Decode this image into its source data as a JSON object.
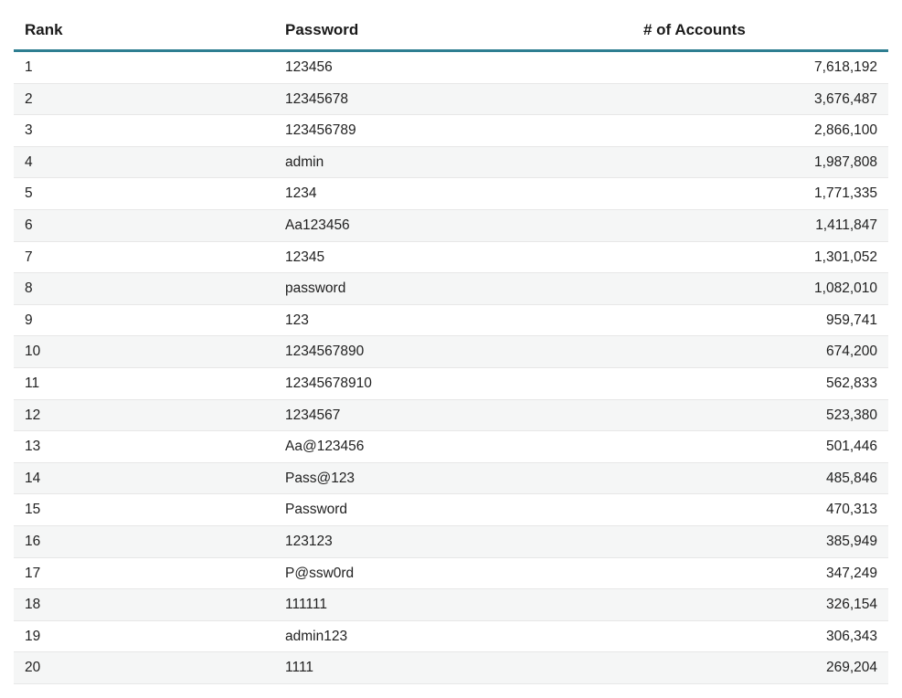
{
  "table": {
    "columns": [
      {
        "key": "rank",
        "label": "Rank",
        "align": "left"
      },
      {
        "key": "password",
        "label": "Password",
        "align": "left"
      },
      {
        "key": "accounts",
        "label": "# of Accounts",
        "align": "right"
      }
    ],
    "rows": [
      {
        "rank": "1",
        "password": "123456",
        "accounts": "7,618,192"
      },
      {
        "rank": "2",
        "password": "12345678",
        "accounts": "3,676,487"
      },
      {
        "rank": "3",
        "password": "123456789",
        "accounts": "2,866,100"
      },
      {
        "rank": "4",
        "password": "admin",
        "accounts": "1,987,808"
      },
      {
        "rank": "5",
        "password": "1234",
        "accounts": "1,771,335"
      },
      {
        "rank": "6",
        "password": "Aa123456",
        "accounts": "1,411,847"
      },
      {
        "rank": "7",
        "password": "12345",
        "accounts": "1,301,052"
      },
      {
        "rank": "8",
        "password": "password",
        "accounts": "1,082,010"
      },
      {
        "rank": "9",
        "password": "123",
        "accounts": "959,741"
      },
      {
        "rank": "10",
        "password": "1234567890",
        "accounts": "674,200"
      },
      {
        "rank": "11",
        "password": "12345678910",
        "accounts": "562,833"
      },
      {
        "rank": "12",
        "password": "1234567",
        "accounts": "523,380"
      },
      {
        "rank": "13",
        "password": "Aa@123456",
        "accounts": "501,446"
      },
      {
        "rank": "14",
        "password": "Pass@123",
        "accounts": "485,846"
      },
      {
        "rank": "15",
        "password": "Password",
        "accounts": "470,313"
      },
      {
        "rank": "16",
        "password": "123123",
        "accounts": "385,949"
      },
      {
        "rank": "17",
        "password": "P@ssw0rd",
        "accounts": "347,249"
      },
      {
        "rank": "18",
        "password": "111111",
        "accounts": "326,154"
      },
      {
        "rank": "19",
        "password": "admin123",
        "accounts": "306,343"
      },
      {
        "rank": "20",
        "password": "1111",
        "accounts": "269,204"
      }
    ]
  },
  "colors": {
    "header_underline": "#2e7e91",
    "row_stripe": "#f5f6f6",
    "row_divider": "#e7e7e7",
    "header_text": "#1a1a1a",
    "cell_text": "#212121"
  },
  "chart_data": {
    "type": "table",
    "columns": [
      "Rank",
      "Password",
      "# of Accounts"
    ],
    "rows": [
      [
        1,
        "123456",
        7618192
      ],
      [
        2,
        "12345678",
        3676487
      ],
      [
        3,
        "123456789",
        2866100
      ],
      [
        4,
        "admin",
        1987808
      ],
      [
        5,
        "1234",
        1771335
      ],
      [
        6,
        "Aa123456",
        1411847
      ],
      [
        7,
        "12345",
        1301052
      ],
      [
        8,
        "password",
        1082010
      ],
      [
        9,
        "123",
        959741
      ],
      [
        10,
        "1234567890",
        674200
      ],
      [
        11,
        "12345678910",
        562833
      ],
      [
        12,
        "1234567",
        523380
      ],
      [
        13,
        "Aa@123456",
        501446
      ],
      [
        14,
        "Pass@123",
        485846
      ],
      [
        15,
        "Password",
        470313
      ],
      [
        16,
        "123123",
        385949
      ],
      [
        17,
        "P@ssw0rd",
        347249
      ],
      [
        18,
        "111111",
        326154
      ],
      [
        19,
        "admin123",
        306343
      ],
      [
        20,
        "1111",
        269204
      ]
    ]
  }
}
